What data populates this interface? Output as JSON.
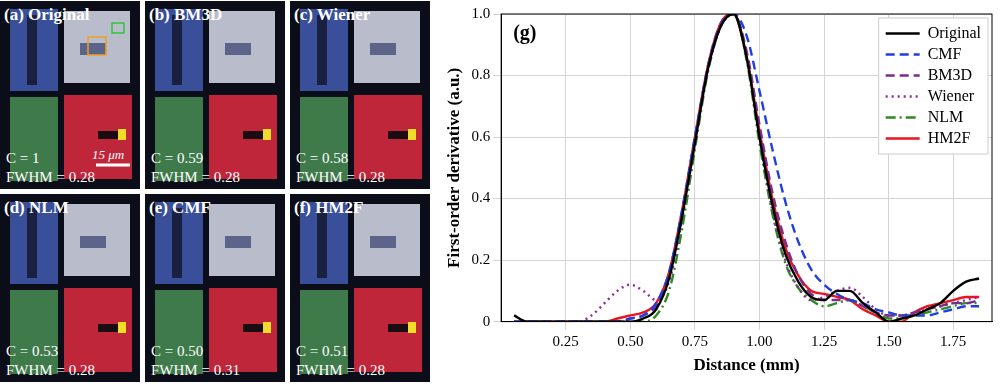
{
  "image_panels": [
    {
      "label": "(a) Original",
      "c": "C = 1",
      "fwhm": "FWHM = 0.28",
      "scale_bar": "15 μm"
    },
    {
      "label": "(b) BM3D",
      "c": "C = 0.59",
      "fwhm": "FWHM = 0.28"
    },
    {
      "label": "(c) Wiener",
      "c": "C = 0.58",
      "fwhm": "FWHM = 0.28"
    },
    {
      "label": "(d) NLM",
      "c": "C = 0.53",
      "fwhm": "FWHM = 0.28"
    },
    {
      "label": "(e) CMF",
      "c": "C = 0.50",
      "fwhm": "FWHM = 0.31"
    },
    {
      "label": "(f) HM2F",
      "c": "C = 0.51",
      "fwhm": "FWHM = 0.28"
    }
  ],
  "chart_data": {
    "type": "line",
    "title": "(g)",
    "x_label": "Distance (mm)",
    "y_label": "First-order derivative (a.u.)",
    "x": [
      0.05,
      0.1,
      0.15,
      0.2,
      0.25,
      0.3,
      0.35,
      0.4,
      0.45,
      0.5,
      0.55,
      0.6,
      0.65,
      0.7,
      0.75,
      0.8,
      0.85,
      0.9,
      0.95,
      1.0,
      1.05,
      1.1,
      1.15,
      1.2,
      1.25,
      1.3,
      1.35,
      1.4,
      1.45,
      1.5,
      1.55,
      1.6,
      1.65,
      1.7,
      1.75,
      1.8,
      1.85
    ],
    "xlim": [
      0,
      1.9
    ],
    "xticks": [
      0.25,
      {
        "value": 0.5,
        "label": "0.50"
      },
      0.75,
      {
        "value": 1,
        "label": "1.00"
      },
      1.25,
      {
        "value": 1.5,
        "label": "1.50"
      },
      1.75
    ],
    "ylim": [
      0,
      1
    ],
    "yticks": [
      0,
      0.2,
      0.4,
      0.6,
      0.8,
      {
        "value": 1,
        "label": "1.0"
      }
    ],
    "grid": true,
    "legend": "top-right",
    "series": [
      {
        "name": "Original",
        "color": "#000000",
        "line_style": "solid",
        "values": [
          0.02,
          0,
          0,
          0,
          0,
          0,
          0,
          0,
          0,
          0,
          0.01,
          0.04,
          0.14,
          0.34,
          0.58,
          0.82,
          0.96,
          1.0,
          0.86,
          0.6,
          0.38,
          0.22,
          0.13,
          0.08,
          0.07,
          0.1,
          0.1,
          0.06,
          0.03,
          0,
          0.01,
          0.02,
          0.04,
          0.06,
          0.1,
          0.13,
          0.14
        ]
      },
      {
        "name": "CMF",
        "color": "#1f3fe0",
        "line_style": "dashed",
        "values": [
          0,
          0,
          0,
          0,
          0,
          0,
          0,
          0,
          0,
          0.01,
          0.02,
          0.06,
          0.16,
          0.36,
          0.6,
          0.82,
          0.96,
          1.0,
          0.93,
          0.75,
          0.56,
          0.39,
          0.26,
          0.17,
          0.12,
          0.09,
          0.07,
          0.06,
          0.04,
          0.03,
          0.02,
          0.02,
          0.02,
          0.03,
          0.04,
          0.05,
          0.05
        ]
      },
      {
        "name": "BM3D",
        "color": "#7b2d8e",
        "line_style": "dashed",
        "values": [
          0,
          0,
          0,
          0,
          0,
          0,
          0,
          0,
          0,
          0.01,
          0.02,
          0.05,
          0.15,
          0.35,
          0.59,
          0.83,
          0.97,
          1.0,
          0.88,
          0.64,
          0.42,
          0.26,
          0.15,
          0.09,
          0.07,
          0.07,
          0.07,
          0.05,
          0.03,
          0.02,
          0.02,
          0.03,
          0.04,
          0.05,
          0.06,
          0.06,
          0.07
        ]
      },
      {
        "name": "Wiener",
        "color": "#8b2a9e",
        "line_style": "dotted",
        "values": [
          0,
          0,
          0,
          0,
          0,
          0,
          0.02,
          0.06,
          0.1,
          0.12,
          0.1,
          0.07,
          0.13,
          0.33,
          0.58,
          0.82,
          0.96,
          1.0,
          0.86,
          0.6,
          0.36,
          0.2,
          0.11,
          0.07,
          0.08,
          0.1,
          0.11,
          0.08,
          0.04,
          0.02,
          0.02,
          0.03,
          0.04,
          0.05,
          0.06,
          0.07,
          0.08
        ]
      },
      {
        "name": "NLM",
        "color": "#2e8b22",
        "line_style": "dashdot",
        "values": [
          0,
          0,
          0,
          0,
          0,
          0,
          0,
          0,
          0,
          0,
          0,
          0.02,
          0.1,
          0.3,
          0.56,
          0.81,
          0.96,
          1.0,
          0.85,
          0.58,
          0.35,
          0.19,
          0.11,
          0.07,
          0.05,
          0.06,
          0.07,
          0.05,
          0.03,
          0.01,
          0.01,
          0.02,
          0.03,
          0.04,
          0.05,
          0.06,
          0.06
        ]
      },
      {
        "name": "HM2F",
        "color": "#e8141e",
        "line_style": "solid",
        "values": [
          0,
          0,
          0,
          0,
          0,
          0,
          0,
          0,
          0.01,
          0.02,
          0.03,
          0.06,
          0.16,
          0.36,
          0.6,
          0.83,
          0.97,
          1.0,
          0.86,
          0.62,
          0.4,
          0.24,
          0.15,
          0.1,
          0.09,
          0.08,
          0.07,
          0.04,
          0.02,
          0,
          0,
          0.03,
          0.05,
          0.06,
          0.07,
          0.08,
          0.08
        ]
      }
    ]
  }
}
